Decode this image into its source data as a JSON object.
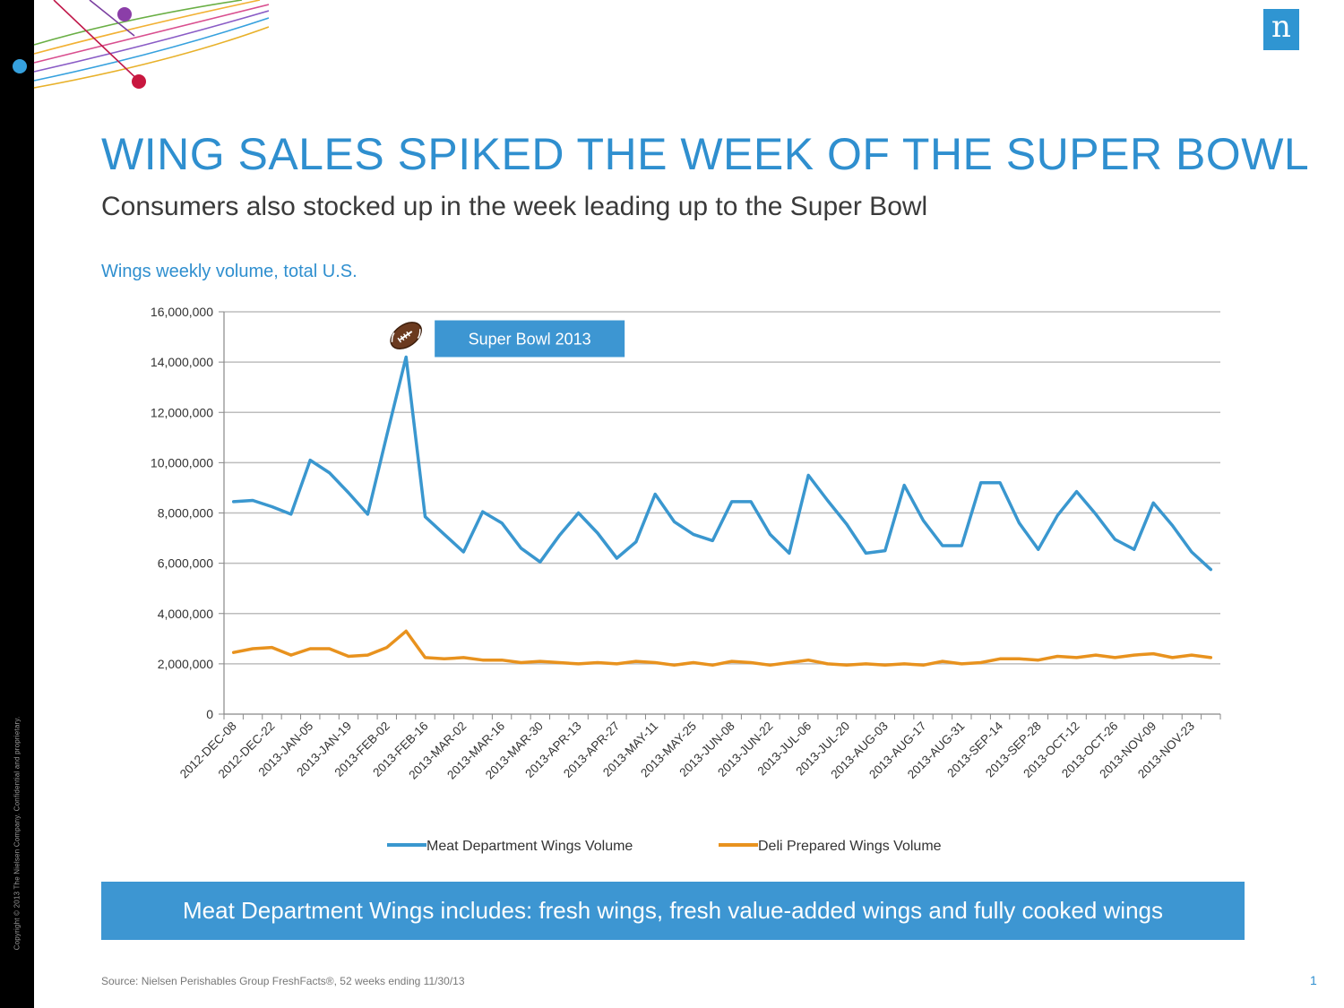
{
  "slide": {
    "title": "WING SALES SPIKED THE WEEK OF THE SUPER BOWL",
    "subtitle": "Consumers also stocked up in the week leading up to the Super Bowl",
    "chart_label": "Wings weekly volume, total U.S.",
    "banner": "Meat Department Wings includes: fresh wings, fresh value-added wings and fully cooked wings",
    "source": "Source: Nielsen Perishables Group FreshFacts®, 52 weeks ending 11/30/13",
    "page_number": "1",
    "logo": "n",
    "copyright": "Copyright © 2013 The Nielsen Company. Confidential and proprietary.",
    "colors": {
      "title": "#2f8fcf",
      "banner": "#3d96d2",
      "meat_series": "#3a97cf",
      "deli_series": "#e8921e"
    }
  },
  "chart_data": {
    "type": "line",
    "ylim": [
      0,
      16000000
    ],
    "yticks": [
      0,
      2000000,
      4000000,
      6000000,
      8000000,
      10000000,
      12000000,
      14000000,
      16000000
    ],
    "ytick_labels": [
      "0",
      "2,000,000",
      "4,000,000",
      "6,000,000",
      "8,000,000",
      "10,000,000",
      "12,000,000",
      "14,000,000",
      "16,000,000"
    ],
    "x": [
      "2012-DEC-08",
      "2012-DEC-15",
      "2012-DEC-22",
      "2012-DEC-29",
      "2013-JAN-05",
      "2013-JAN-12",
      "2013-JAN-19",
      "2013-JAN-26",
      "2013-FEB-02",
      "2013-FEB-09",
      "2013-FEB-16",
      "2013-FEB-23",
      "2013-MAR-02",
      "2013-MAR-09",
      "2013-MAR-16",
      "2013-MAR-23",
      "2013-MAR-30",
      "2013-APR-06",
      "2013-APR-13",
      "2013-APR-20",
      "2013-APR-27",
      "2013-MAY-04",
      "2013-MAY-11",
      "2013-MAY-18",
      "2013-MAY-25",
      "2013-JUN-01",
      "2013-JUN-08",
      "2013-JUN-15",
      "2013-JUN-22",
      "2013-JUN-29",
      "2013-JUL-06",
      "2013-JUL-13",
      "2013-JUL-20",
      "2013-JUL-27",
      "2013-AUG-03",
      "2013-AUG-10",
      "2013-AUG-17",
      "2013-AUG-24",
      "2013-AUG-31",
      "2013-SEP-07",
      "2013-SEP-14",
      "2013-SEP-21",
      "2013-SEP-28",
      "2013-OCT-05",
      "2013-OCT-12",
      "2013-OCT-19",
      "2013-OCT-26",
      "2013-NOV-02",
      "2013-NOV-09",
      "2013-NOV-16",
      "2013-NOV-23",
      "2013-NOV-30"
    ],
    "x_tick_labels": [
      "2012-DEC-08",
      "2012-DEC-22",
      "2013-JAN-05",
      "2013-JAN-19",
      "2013-FEB-02",
      "2013-FEB-16",
      "2013-MAR-02",
      "2013-MAR-16",
      "2013-MAR-30",
      "2013-APR-13",
      "2013-APR-27",
      "2013-MAY-11",
      "2013-MAY-25",
      "2013-JUN-08",
      "2013-JUN-22",
      "2013-JUL-06",
      "2013-JUL-20",
      "2013-AUG-03",
      "2013-AUG-17",
      "2013-AUG-31",
      "2013-SEP-14",
      "2013-SEP-28",
      "2013-OCT-12",
      "2013-OCT-26",
      "2013-NOV-09",
      "2013-NOV-23"
    ],
    "series": [
      {
        "name": "Meat Department Wings Volume",
        "color": "#3a97cf",
        "values": [
          8450000,
          8500000,
          8250000,
          7950000,
          10100000,
          9600000,
          8800000,
          7950000,
          11100000,
          14200000,
          7850000,
          7150000,
          6450000,
          8050000,
          7600000,
          6600000,
          6050000,
          7100000,
          8000000,
          7200000,
          6200000,
          6850000,
          8750000,
          7650000,
          7150000,
          6900000,
          8450000,
          8450000,
          7150000,
          6400000,
          9500000,
          8500000,
          7550000,
          6400000,
          6500000,
          9100000,
          7700000,
          6700000,
          6700000,
          9200000,
          9200000,
          7600000,
          6550000,
          7900000,
          8850000,
          7950000,
          6950000,
          6550000,
          8400000,
          7500000,
          6450000,
          5750000
        ]
      },
      {
        "name": "Deli Prepared Wings Volume",
        "color": "#e8921e",
        "values": [
          2450000,
          2600000,
          2650000,
          2350000,
          2600000,
          2600000,
          2300000,
          2350000,
          2650000,
          3300000,
          2250000,
          2200000,
          2250000,
          2150000,
          2150000,
          2050000,
          2100000,
          2050000,
          2000000,
          2050000,
          2000000,
          2100000,
          2050000,
          1950000,
          2050000,
          1950000,
          2100000,
          2050000,
          1950000,
          2050000,
          2150000,
          2000000,
          1950000,
          2000000,
          1950000,
          2000000,
          1950000,
          2100000,
          2000000,
          2050000,
          2200000,
          2200000,
          2150000,
          2300000,
          2250000,
          2350000,
          2250000,
          2350000,
          2400000,
          2250000,
          2350000,
          2250000
        ]
      }
    ],
    "legend_position": "bottom",
    "annotation": {
      "label": "Super Bowl 2013",
      "x": "2013-FEB-09",
      "icon": "football-icon"
    },
    "grid": true
  }
}
